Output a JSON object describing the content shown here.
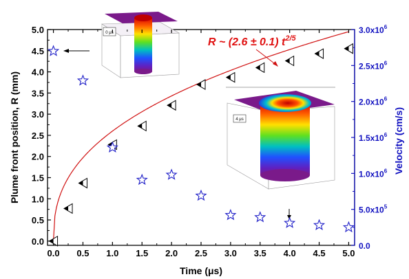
{
  "chart_data": {
    "type": "scatter",
    "xlabel": "Time (μs)",
    "ylabel_left": "Plume front position, R (mm)",
    "ylabel_right": "Velocity (cm/s)",
    "xlim": [
      -0.1,
      5.1
    ],
    "ylim_left": [
      -0.1,
      5.0
    ],
    "ylim_right": [
      0,
      3000000
    ],
    "x_ticks": [
      "0.0",
      "0.5",
      "1.0",
      "1.5",
      "2.0",
      "2.5",
      "3.0",
      "3.5",
      "4.0",
      "4.5",
      "5.0"
    ],
    "y_left_ticks": [
      "0.0",
      "0.5",
      "1.0",
      "1.5",
      "2.0",
      "2.5",
      "3.0",
      "3.5",
      "4.0",
      "4.5",
      "5.0"
    ],
    "y_right_ticks": [
      {
        "m": "0.0",
        "e": ""
      },
      {
        "m": "5.0x10",
        "e": "5"
      },
      {
        "m": "1.0x10",
        "e": "6"
      },
      {
        "m": "1.5x10",
        "e": "6"
      },
      {
        "m": "2.0x10",
        "e": "6"
      },
      {
        "m": "2.5x10",
        "e": "6"
      },
      {
        "m": "3.0x10",
        "e": "6"
      }
    ],
    "series": [
      {
        "marker": "half-filled left triangle",
        "axis": "left",
        "x": [
          0.0,
          0.25,
          0.5,
          1.0,
          1.5,
          2.0,
          2.5,
          3.0,
          3.5,
          4.0,
          4.5,
          5.0
        ],
        "y": [
          0.0,
          0.77,
          1.37,
          2.28,
          2.72,
          3.21,
          3.7,
          3.87,
          4.1,
          4.26,
          4.43,
          4.55
        ]
      },
      {
        "marker": "star",
        "axis": "right",
        "color": "#2020c8",
        "x": [
          0.0,
          0.5,
          1.0,
          1.5,
          2.0,
          2.5,
          3.0,
          3.5,
          4.0,
          4.5,
          5.0
        ],
        "y": [
          2700000,
          2290000,
          1360000,
          910000,
          980000,
          690000,
          420000,
          390000,
          310000,
          280000,
          250000
        ]
      }
    ],
    "fit": {
      "color": "#d01010",
      "coefficient": 2.6,
      "exponent": 0.4,
      "label_main": "R ~ (2.6 ± 0.1) t",
      "label_exp": "2/5"
    },
    "insets": [
      {
        "label": "0 μs"
      },
      {
        "label": "4 μs"
      }
    ],
    "colors": {
      "left_axis": "#000000",
      "right_axis": "#1010c0",
      "fit": "#d01010",
      "stars": "#2020c8"
    }
  }
}
